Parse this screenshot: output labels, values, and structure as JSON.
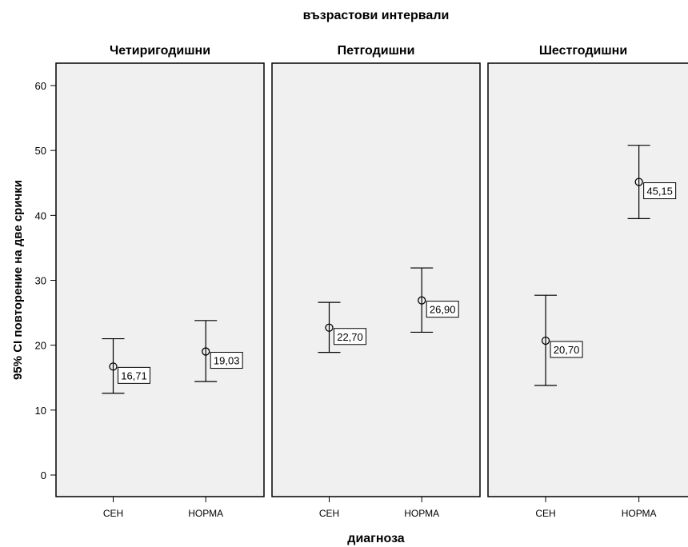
{
  "chart_data": {
    "type": "errorbar",
    "title": "възрастови интервали",
    "xlabel": "диагноза",
    "ylabel": "95% CI повторение на две срички",
    "ylim": [
      -2,
      63
    ],
    "yticks": [
      0,
      10,
      20,
      30,
      40,
      50,
      60
    ],
    "categories": [
      "СЕН",
      "НОРМА"
    ],
    "panels": [
      {
        "name": "Четиригодишни",
        "points": [
          {
            "category": "СЕН",
            "mean": 16.71,
            "lower": 12.6,
            "upper": 21.0,
            "label": "16,71"
          },
          {
            "category": "НОРМА",
            "mean": 19.03,
            "lower": 14.4,
            "upper": 23.8,
            "label": "19,03"
          }
        ]
      },
      {
        "name": "Петгодишни",
        "points": [
          {
            "category": "СЕН",
            "mean": 22.7,
            "lower": 18.9,
            "upper": 26.6,
            "label": "22,70"
          },
          {
            "category": "НОРМА",
            "mean": 26.9,
            "lower": 22.0,
            "upper": 31.9,
            "label": "26,90"
          }
        ]
      },
      {
        "name": "Шестгодишни",
        "points": [
          {
            "category": "СЕН",
            "mean": 20.7,
            "lower": 13.8,
            "upper": 27.7,
            "label": "20,70"
          },
          {
            "category": "НОРМА",
            "mean": 45.15,
            "lower": 39.5,
            "upper": 50.8,
            "label": "45,15"
          }
        ]
      }
    ],
    "colors": {
      "panel_background": "#f0f0f0",
      "panel_border": "#000000",
      "marker": "#000000"
    }
  }
}
